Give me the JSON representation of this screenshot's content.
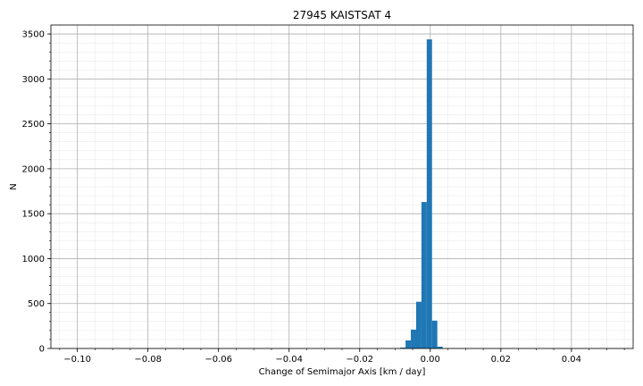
{
  "chart_data": {
    "type": "bar",
    "title": "27945 KAISTSAT 4",
    "xlabel": "Change of Semimajor Axis [km / day]",
    "ylabel": "N",
    "xlim": [
      -0.1075,
      0.0575
    ],
    "ylim": [
      0,
      3600
    ],
    "grid": true,
    "x_ticks": [
      -0.1,
      -0.08,
      -0.06,
      -0.04,
      -0.02,
      0.0,
      0.02,
      0.04
    ],
    "x_tick_labels": [
      "−0.10",
      "−0.08",
      "−0.06",
      "−0.04",
      "−0.02",
      "0.00",
      "0.02",
      "0.04"
    ],
    "y_ticks": [
      0,
      500,
      1000,
      1500,
      2000,
      2500,
      3000,
      3500
    ],
    "y_tick_labels": [
      "0",
      "500",
      "1000",
      "1500",
      "2000",
      "2500",
      "3000",
      "3500"
    ],
    "bar_color": "#1f77b4",
    "bins": [
      {
        "x0": -0.0085,
        "x1": -0.007,
        "count": 10
      },
      {
        "x0": -0.007,
        "x1": -0.0055,
        "count": 90
      },
      {
        "x0": -0.0055,
        "x1": -0.004,
        "count": 210
      },
      {
        "x0": -0.004,
        "x1": -0.0025,
        "count": 520
      },
      {
        "x0": -0.0025,
        "x1": -0.001,
        "count": 1630
      },
      {
        "x0": -0.001,
        "x1": 0.0005,
        "count": 3440
      },
      {
        "x0": 0.0005,
        "x1": 0.002,
        "count": 310
      },
      {
        "x0": 0.002,
        "x1": 0.0035,
        "count": 20
      }
    ]
  }
}
